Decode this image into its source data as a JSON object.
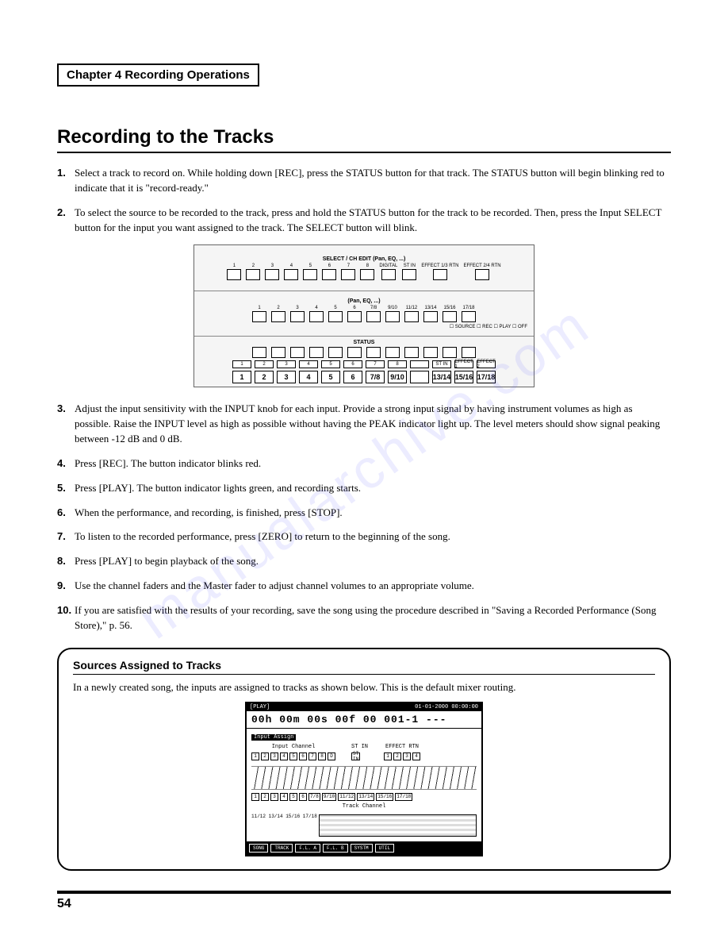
{
  "chapter": {
    "label": "Chapter 4 Recording Operations"
  },
  "section": {
    "title": "Recording to the Tracks"
  },
  "steps": [
    {
      "n": "1.",
      "text": "Select a track to record on. While holding down [REC], press the STATUS button for that track. The STATUS button will begin blinking red to indicate that it is \"record-ready.\""
    },
    {
      "n": "2.",
      "text": "To select the source to be recorded to the track, press and hold the STATUS button for the track to be recorded. Then, press the Input SELECT button for the input you want assigned to the track. The SELECT button will blink."
    },
    {
      "n": "3.",
      "text": "Adjust the input sensitivity with the INPUT knob for each input. Provide a strong input signal by having instrument volumes as high as possible. Raise the INPUT level as high as possible without having the PEAK indicator light up. The level meters should show signal peaking between -12 dB and 0 dB."
    },
    {
      "n": "4.",
      "text": "Press [REC]. The button indicator blinks red."
    },
    {
      "n": "5.",
      "text": "Press [PLAY]. The button indicator lights green, and recording starts."
    },
    {
      "n": "6.",
      "text": "When the performance, and recording, is finished, press [STOP]."
    },
    {
      "n": "7.",
      "text": "To listen to the recorded performance, press [ZERO] to return to the beginning of the song."
    },
    {
      "n": "8.",
      "text": "Press [PLAY] to begin playback of the song."
    },
    {
      "n": "9.",
      "text": "Use the channel faders and the Master fader to adjust channel volumes to an appropriate volume."
    },
    {
      "n": "10.",
      "text": "If you are satisfied with the results of your recording, save the song using the procedure described in \"Saving a Recorded Performance (Song Store),\" p. 56."
    }
  ],
  "panel": {
    "select_header": "SELECT / CH EDIT (Pan, EQ, ...)",
    "row1_labels": [
      "1",
      "2",
      "3",
      "4",
      "5",
      "6",
      "7",
      "8",
      "DIGITAL",
      "ST IN",
      "EFFECT 1/3 RTN",
      "EFFECT 2/4 RTN"
    ],
    "row2_header": "(Pan, EQ, ...)",
    "row2_labels": [
      "1",
      "2",
      "3",
      "4",
      "5",
      "6",
      "7/8",
      "9/10",
      "11/12",
      "13/14",
      "15/16",
      "17/18"
    ],
    "row2_modes": "☐ SOURCE  ☐ REC  ☐ PLAY  ☐ OFF",
    "status_label": "STATUS",
    "row3_small": [
      "1",
      "2",
      "3",
      "4",
      "5",
      "6",
      "7",
      "8",
      "",
      "ST IN",
      "EFFECT 1",
      "EFFECT 2"
    ],
    "row3_big": [
      "1",
      "2",
      "3",
      "4",
      "5",
      "6",
      "7/8",
      "9/10",
      "",
      "13/14",
      "15/16",
      "17/18"
    ]
  },
  "sources": {
    "title": "Sources Assigned to Tracks",
    "text": "In a newly created song, the inputs are assigned to tracks as shown below. This is the default mixer routing."
  },
  "lcd": {
    "top_left": "[PLAY]",
    "top_right": "01-01-2000  00:00:00",
    "time": "00h 00m 00s 00f 00  001-1 ---",
    "assign_label": "Input Assign",
    "input_channel": "Input Channel",
    "effect_rtn": "EFFECT RTN",
    "st_in": "ST IN",
    "in_ch": [
      "1",
      "2",
      "3",
      "4",
      "5",
      "6",
      "7",
      "8",
      "D"
    ],
    "fx_ch": [
      "1",
      "2",
      "3",
      "4"
    ],
    "track_ch": [
      "1",
      "2",
      "3",
      "4",
      "5",
      "6",
      "7/8",
      "9/10",
      "11/12",
      "13/14",
      "15/16",
      "17/18"
    ],
    "track_label": "Track Channel",
    "meter_rows": "11/12\n13/14\n15/16\n17/18",
    "tabs": [
      "SONG",
      "TRACK",
      "F.L. A",
      "F.L. B",
      "SYSTM",
      "UTIL"
    ]
  },
  "page_number": "54",
  "watermark": "manualarchive.com",
  "colors": {
    "text": "#000000",
    "background": "#ffffff",
    "watermark": "rgba(100,100,255,0.12)",
    "panel_bg": "#f5f5f5"
  }
}
